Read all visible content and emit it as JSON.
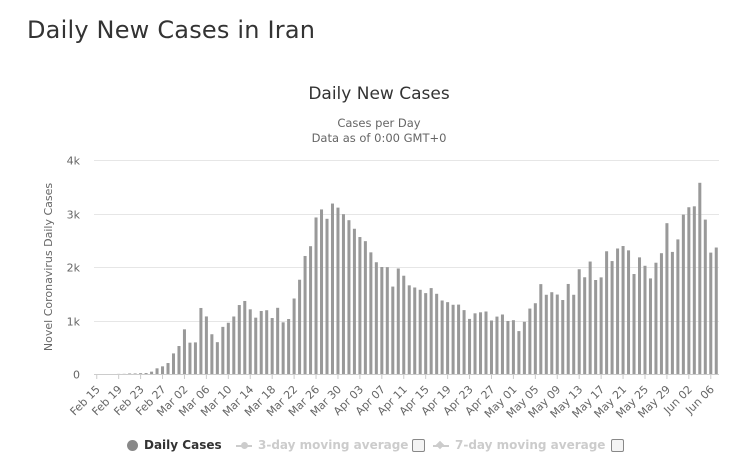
{
  "page": {
    "title": "Daily New Cases in Iran"
  },
  "chart_data": {
    "type": "bar",
    "title": "Daily New Cases",
    "subtitle_line1": "Cases per Day",
    "subtitle_line2": "Data as of 0:00 GMT+0",
    "ylabel": "Novel Coronavirus Daily Cases",
    "xlabel": "",
    "ylim": [
      0,
      4000
    ],
    "y_ticks": [
      {
        "value": 0,
        "label": "0"
      },
      {
        "value": 1000,
        "label": "1k"
      },
      {
        "value": 2000,
        "label": "2k"
      },
      {
        "value": 3000,
        "label": "3k"
      },
      {
        "value": 4000,
        "label": "4k"
      }
    ],
    "grid": true,
    "bar_color": "#999999",
    "categories": [
      "Feb 15",
      "Feb 16",
      "Feb 17",
      "Feb 18",
      "Feb 19",
      "Feb 20",
      "Feb 21",
      "Feb 22",
      "Feb 23",
      "Feb 24",
      "Feb 25",
      "Feb 26",
      "Feb 27",
      "Feb 28",
      "Feb 29",
      "Mar 01",
      "Mar 02",
      "Mar 03",
      "Mar 04",
      "Mar 05",
      "Mar 06",
      "Mar 07",
      "Mar 08",
      "Mar 09",
      "Mar 10",
      "Mar 11",
      "Mar 12",
      "Mar 13",
      "Mar 14",
      "Mar 15",
      "Mar 16",
      "Mar 17",
      "Mar 18",
      "Mar 19",
      "Mar 20",
      "Mar 21",
      "Mar 22",
      "Mar 23",
      "Mar 24",
      "Mar 25",
      "Mar 26",
      "Mar 27",
      "Mar 28",
      "Mar 29",
      "Mar 30",
      "Mar 31",
      "Apr 01",
      "Apr 02",
      "Apr 03",
      "Apr 04",
      "Apr 05",
      "Apr 06",
      "Apr 07",
      "Apr 08",
      "Apr 09",
      "Apr 10",
      "Apr 11",
      "Apr 12",
      "Apr 13",
      "Apr 14",
      "Apr 15",
      "Apr 16",
      "Apr 17",
      "Apr 18",
      "Apr 19",
      "Apr 20",
      "Apr 21",
      "Apr 22",
      "Apr 23",
      "Apr 24",
      "Apr 25",
      "Apr 26",
      "Apr 27",
      "Apr 28",
      "Apr 29",
      "Apr 30",
      "May 01",
      "May 02",
      "May 03",
      "May 04",
      "May 05",
      "May 06",
      "May 07",
      "May 08",
      "May 09",
      "May 10",
      "May 11",
      "May 12",
      "May 13",
      "May 14",
      "May 15",
      "May 16",
      "May 17",
      "May 18",
      "May 19",
      "May 20",
      "May 21",
      "May 22",
      "May 23",
      "May 24",
      "May 25",
      "May 26",
      "May 27",
      "May 28",
      "May 29",
      "May 30",
      "May 31",
      "Jun 01",
      "Jun 02",
      "Jun 03",
      "Jun 04",
      "Jun 05",
      "Jun 06",
      "Jun 07"
    ],
    "x_tick_labels": [
      "Feb 15",
      "Feb 19",
      "Feb 23",
      "Feb 27",
      "Mar 02",
      "Mar 06",
      "Mar 10",
      "Mar 14",
      "Mar 18",
      "Mar 22",
      "Mar 26",
      "Mar 30",
      "Apr 03",
      "Apr 07",
      "Apr 11",
      "Apr 15",
      "Apr 19",
      "Apr 23",
      "Apr 27",
      "May 01",
      "May 05",
      "May 09",
      "May 13",
      "May 17",
      "May 21",
      "May 25",
      "May 29",
      "Jun 02",
      "Jun 06"
    ],
    "series": [
      {
        "name": "Daily Cases",
        "values": [
          0,
          0,
          0,
          0,
          2,
          3,
          10,
          10,
          15,
          18,
          44,
          106,
          143,
          205,
          385,
          523,
          835,
          586,
          591,
          1234,
          1076,
          743,
          595,
          881,
          958,
          1075,
          1289,
          1365,
          1209,
          1053,
          1178,
          1192,
          1046,
          1237,
          966,
          1028,
          1411,
          1762,
          2206,
          2389,
          2926,
          3076,
          2901,
          3186,
          3110,
          2987,
          2875,
          2715,
          2560,
          2483,
          2274,
          2089,
          2000,
          1997,
          1634,
          1972,
          1837,
          1657,
          1617,
          1574,
          1512,
          1606,
          1499,
          1374,
          1343,
          1294,
          1297,
          1194,
          1030,
          1134,
          1153,
          1168,
          1000,
          1073,
          1112,
          991,
          1006,
          802,
          976,
          1223,
          1323,
          1680,
          1481,
          1529,
          1485,
          1383,
          1683,
          1481,
          1958,
          1808,
          2102,
          1757,
          1806,
          2294,
          2111,
          2346,
          2392,
          2311,
          1869,
          2180,
          2023,
          1787,
          2080,
          2258,
          2819,
          2282,
          2516,
          2979,
          3117,
          3134,
          3574,
          2886,
          2269,
          2364
        ]
      }
    ],
    "legend": [
      {
        "label": "Daily Cases",
        "visible": true
      },
      {
        "label": "3-day moving average",
        "visible": false
      },
      {
        "label": "7-day moving average",
        "visible": false
      }
    ]
  }
}
